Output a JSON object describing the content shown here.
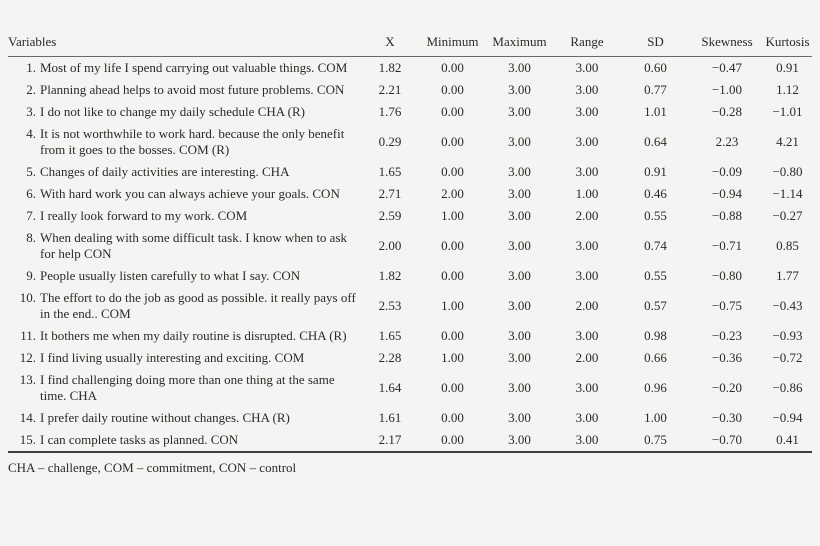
{
  "table": {
    "columns": [
      "Variables",
      "X",
      "Minimum",
      "Maximum",
      "Range",
      "SD",
      "Skewness",
      "Kurtosis"
    ],
    "rows": [
      {
        "num": "1.",
        "label": "Most of my life I spend carrying out valuable things. COM",
        "values": [
          "1.82",
          "0.00",
          "3.00",
          "3.00",
          "0.60",
          "−0.47",
          "0.91"
        ]
      },
      {
        "num": "2.",
        "label": "Planning ahead helps to avoid most future problems. CON",
        "values": [
          "2.21",
          "0.00",
          "3.00",
          "3.00",
          "0.77",
          "−1.00",
          "1.12"
        ]
      },
      {
        "num": "3.",
        "label": "I do not like to change my daily schedule CHA (R)",
        "values": [
          "1.76",
          "0.00",
          "3.00",
          "3.00",
          "1.01",
          "−0.28",
          "−1.01"
        ]
      },
      {
        "num": "4.",
        "label": "It is not worthwhile to work hard. because the only benefit from it goes to the bosses. COM (R)",
        "values": [
          "0.29",
          "0.00",
          "3.00",
          "3.00",
          "0.64",
          "2.23",
          "4.21"
        ]
      },
      {
        "num": "5.",
        "label": "Changes of daily activities are interesting. CHA",
        "values": [
          "1.65",
          "0.00",
          "3.00",
          "3.00",
          "0.91",
          "−0.09",
          "−0.80"
        ]
      },
      {
        "num": "6.",
        "label": "With hard work you can always achieve your goals. CON",
        "values": [
          "2.71",
          "2.00",
          "3.00",
          "1.00",
          "0.46",
          "−0.94",
          "−1.14"
        ]
      },
      {
        "num": "7.",
        "label": "I really look forward to my work. COM",
        "values": [
          "2.59",
          "1.00",
          "3.00",
          "2.00",
          "0.55",
          "−0.88",
          "−0.27"
        ]
      },
      {
        "num": "8.",
        "label": "When dealing with some difficult task. I know when to ask for help CON",
        "values": [
          "2.00",
          "0.00",
          "3.00",
          "3.00",
          "0.74",
          "−0.71",
          "0.85"
        ]
      },
      {
        "num": "9.",
        "label": "People usually listen carefully to what I say. CON",
        "values": [
          "1.82",
          "0.00",
          "3.00",
          "3.00",
          "0.55",
          "−0.80",
          "1.77"
        ]
      },
      {
        "num": "10.",
        "label": "The effort to do the job as good as possible. it really pays off in the end.. COM",
        "values": [
          "2.53",
          "1.00",
          "3.00",
          "2.00",
          "0.57",
          "−0.75",
          "−0.43"
        ]
      },
      {
        "num": "11.",
        "label": "It bothers me when my daily routine is disrupted. CHA (R)",
        "values": [
          "1.65",
          "0.00",
          "3.00",
          "3.00",
          "0.98",
          "−0.23",
          "−0.93"
        ]
      },
      {
        "num": "12.",
        "label": "I find living usually interesting and exciting. COM",
        "values": [
          "2.28",
          "1.00",
          "3.00",
          "2.00",
          "0.66",
          "−0.36",
          "−0.72"
        ]
      },
      {
        "num": "13.",
        "label": "I find challenging doing more than one thing at the same time. CHA",
        "values": [
          "1.64",
          "0.00",
          "3.00",
          "3.00",
          "0.96",
          "−0.20",
          "−0.86"
        ]
      },
      {
        "num": "14.",
        "label": "I prefer daily routine without changes. CHA (R)",
        "values": [
          "1.61",
          "0.00",
          "3.00",
          "3.00",
          "1.00",
          "−0.30",
          "−0.94"
        ]
      },
      {
        "num": "15.",
        "label": "I can complete tasks as planned. CON",
        "values": [
          "2.17",
          "0.00",
          "3.00",
          "3.00",
          "0.75",
          "−0.70",
          "0.41"
        ]
      }
    ],
    "footnote": "CHA – challenge, COM – commitment, CON – control"
  }
}
